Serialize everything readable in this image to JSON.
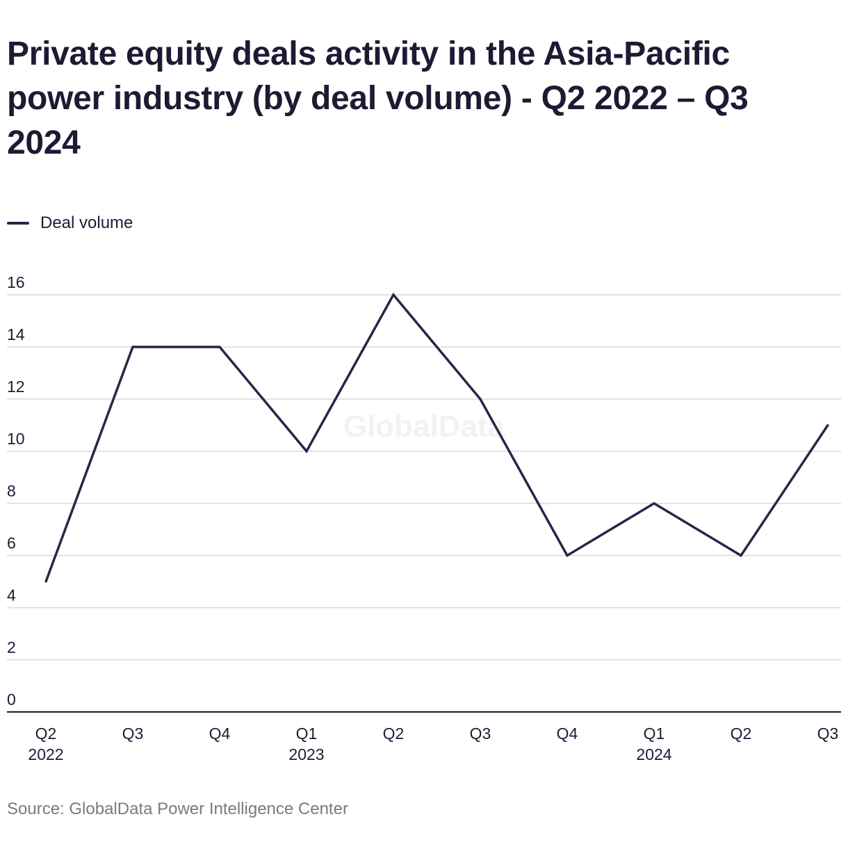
{
  "title": "Private equity deals activity in the Asia-Pacific power industry (by deal volume) - Q2 2022 – Q3 2024",
  "legend": {
    "label": "Deal volume"
  },
  "source": "Source: GlobalData Power Intelligence Center",
  "watermark": "GlobalData",
  "colors": {
    "line": "#2e2347",
    "grid": "#d9d9d9",
    "axis": "#1f1a33",
    "text": "#1f1a33",
    "source": "#7a7a80",
    "watermark": "#f2f2f2"
  },
  "chart_data": {
    "type": "line",
    "categories": [
      "Q2 2022",
      "Q3 2022",
      "Q4 2022",
      "Q1 2023",
      "Q2 2023",
      "Q3 2023",
      "Q4 2023",
      "Q1 2024",
      "Q2 2024",
      "Q3 2024"
    ],
    "tick_labels": [
      [
        "Q2",
        "2022"
      ],
      [
        "Q3"
      ],
      [
        "Q4"
      ],
      [
        "Q1",
        "2023"
      ],
      [
        "Q2"
      ],
      [
        "Q3"
      ],
      [
        "Q4"
      ],
      [
        "Q1",
        "2024"
      ],
      [
        "Q2"
      ],
      [
        "Q3"
      ]
    ],
    "series": [
      {
        "name": "Deal volume",
        "values": [
          5,
          14,
          14,
          10,
          16,
          12,
          6,
          8,
          6,
          11
        ]
      }
    ],
    "ylim": [
      0,
      16
    ],
    "yticks": [
      0,
      2,
      4,
      6,
      8,
      10,
      12,
      14,
      16
    ],
    "grid": true,
    "legend_position": "top-left",
    "xlabel": "",
    "ylabel": ""
  }
}
